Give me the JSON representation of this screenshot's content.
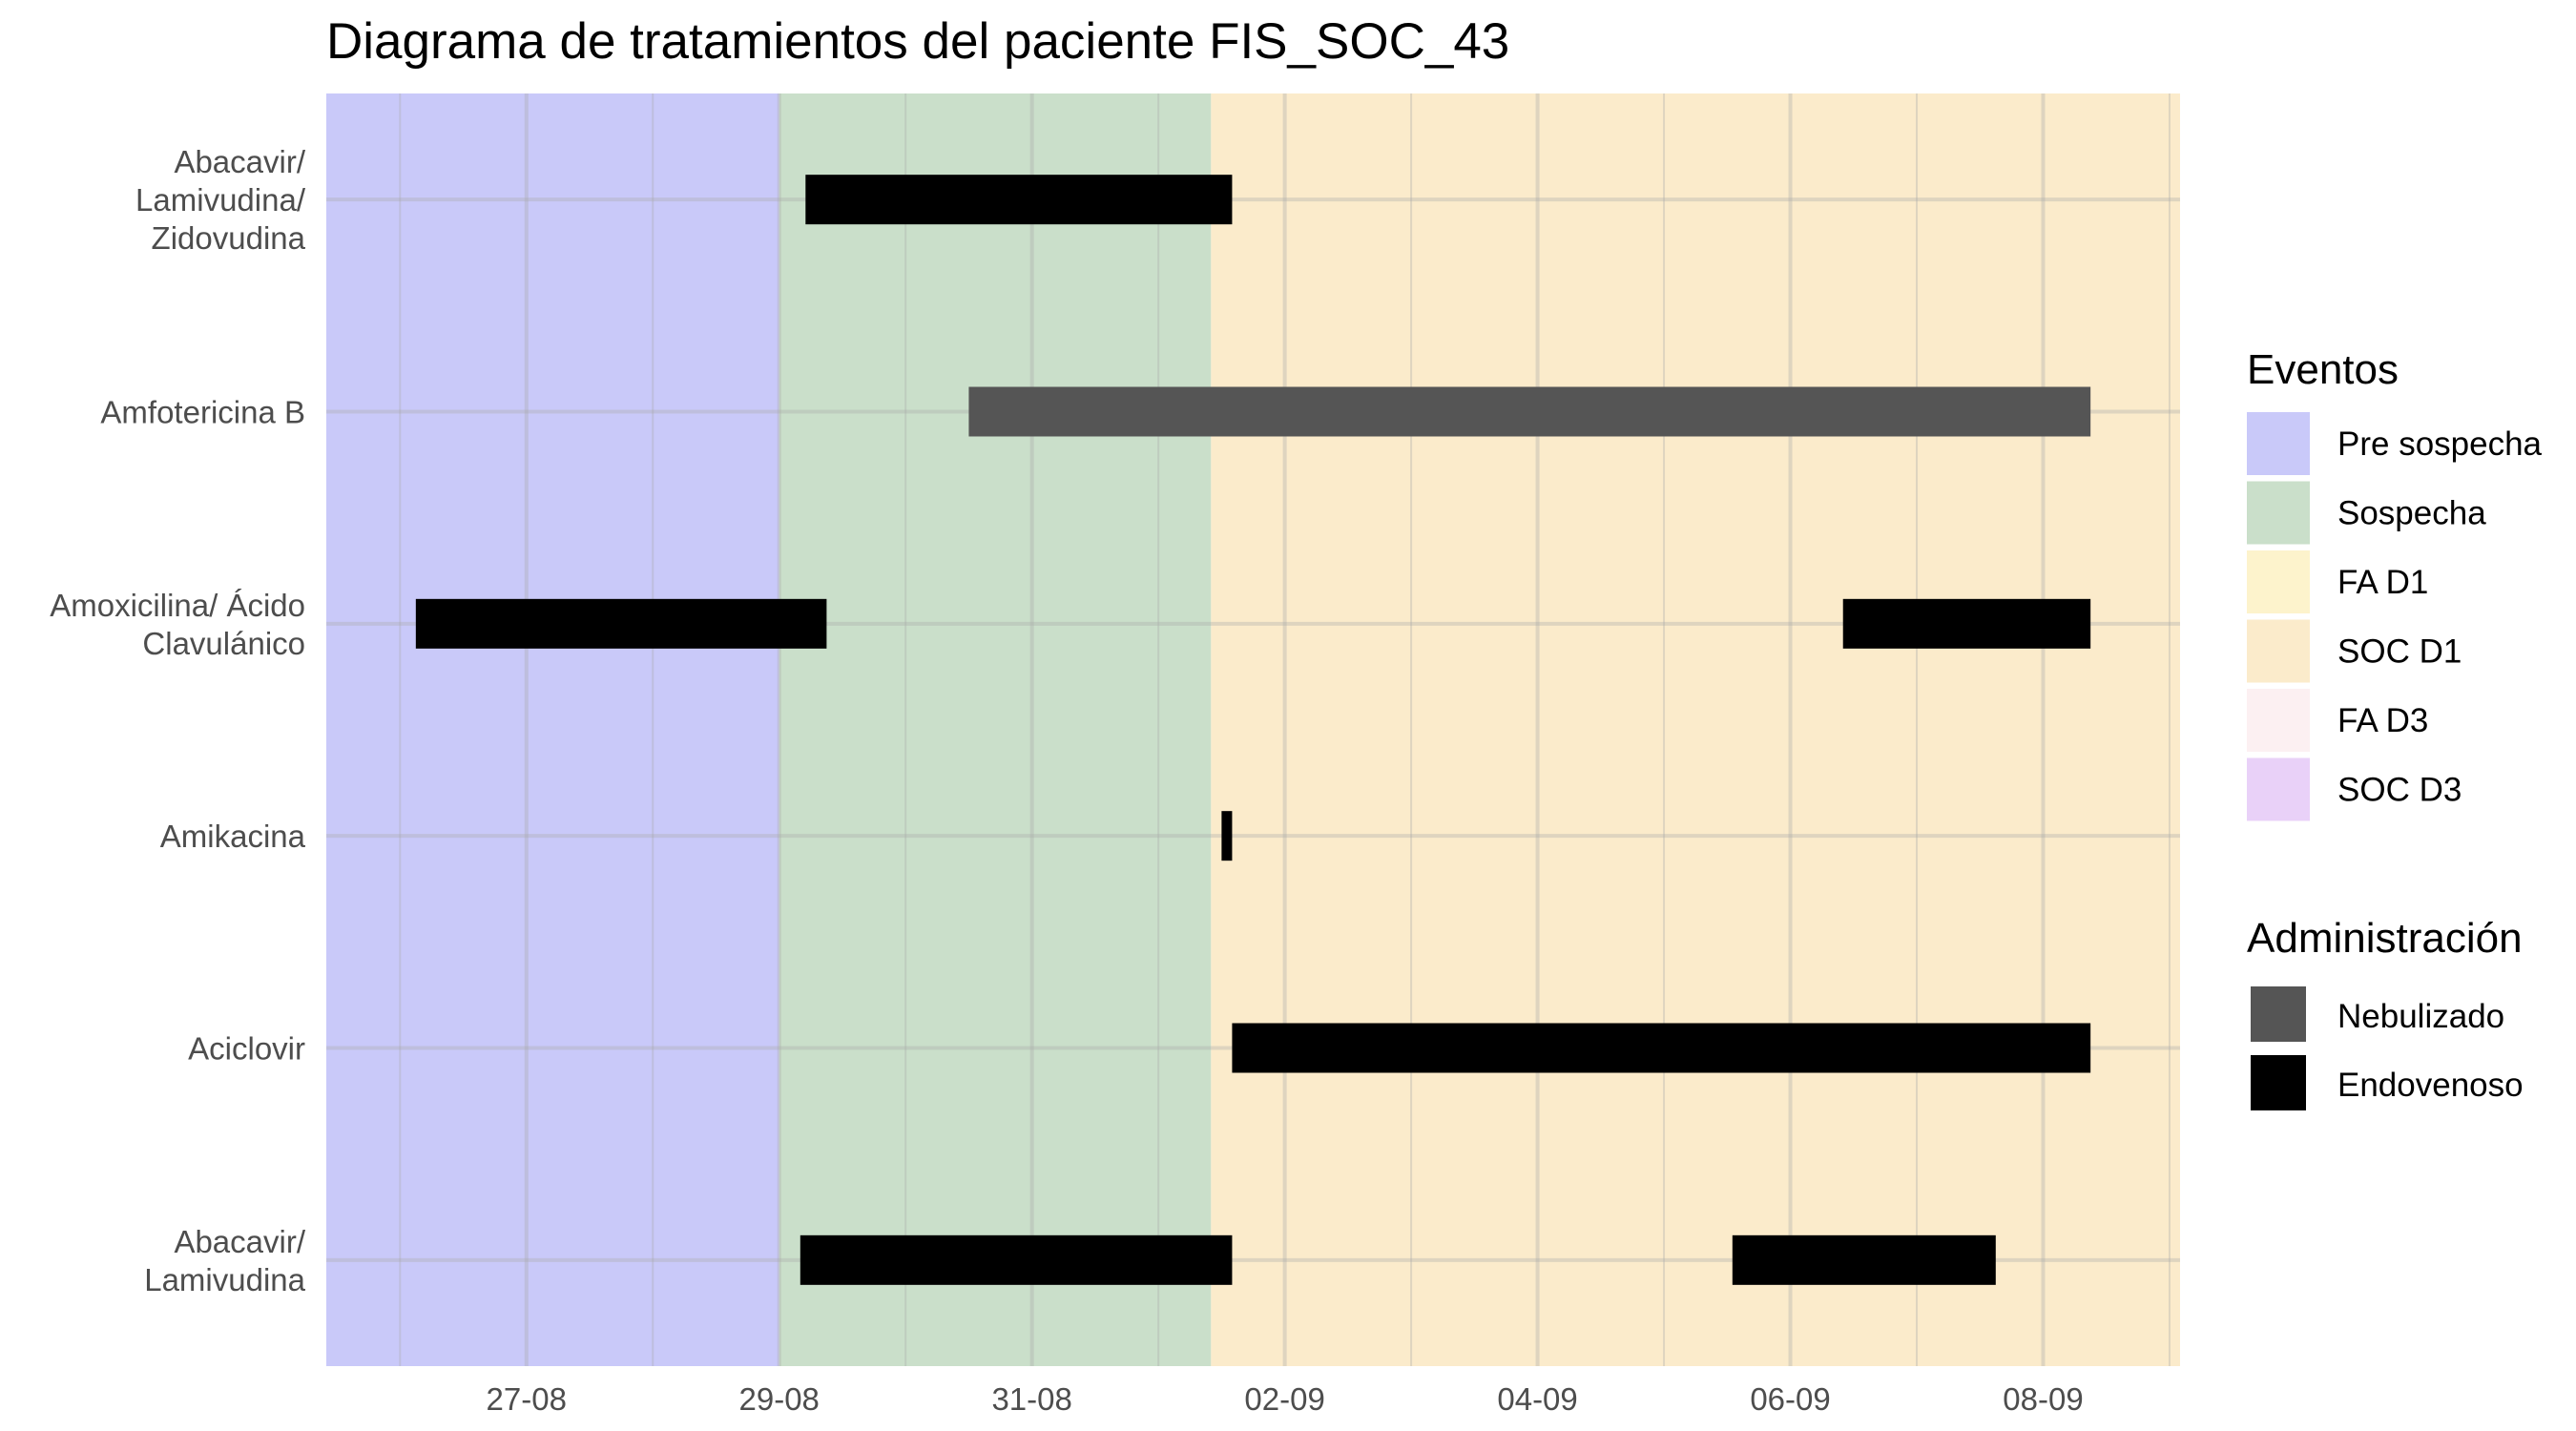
{
  "chart_data": {
    "type": "gantt",
    "title": "Diagrama de tratamientos del paciente FIS_SOC_43",
    "xlabel": "",
    "ylabel": "",
    "x_ticks": [
      "27-08",
      "29-08",
      "31-08",
      "02-09",
      "04-09",
      "06-09",
      "08-09"
    ],
    "x_range": [
      "2024-08-25T10:00",
      "2024-09-09T02:00"
    ],
    "categories": [
      [
        "Abacavir/",
        "Lamivudina/",
        "Zidovudina"
      ],
      [
        "Amfotericina B"
      ],
      [
        "Amoxicilina/ Ácido",
        "Clavulánico"
      ],
      [
        "Amikacina"
      ],
      [
        "Aciclovir"
      ],
      [
        "Abacavir/",
        "Lamivudina"
      ]
    ],
    "event_bands": [
      {
        "event": "Pre sospecha",
        "start": "2024-08-25T10:00",
        "end": "2024-08-29T00:00"
      },
      {
        "event": "Sospecha",
        "start": "2024-08-29T00:00",
        "end": "2024-09-01T10:00"
      },
      {
        "event": "SOC D1",
        "start": "2024-09-01T10:00",
        "end": "2024-09-09T02:00"
      }
    ],
    "bars": [
      {
        "row": 0,
        "start": "2024-08-29T05:00",
        "end": "2024-09-01T14:00",
        "administration": "Endovenoso"
      },
      {
        "row": 1,
        "start": "2024-08-30T12:00",
        "end": "2024-09-08T09:00",
        "administration": "Nebulizado"
      },
      {
        "row": 2,
        "start": "2024-08-26T03:00",
        "end": "2024-08-29T09:00",
        "administration": "Endovenoso"
      },
      {
        "row": 2,
        "start": "2024-09-06T10:00",
        "end": "2024-09-08T09:00",
        "administration": "Endovenoso"
      },
      {
        "row": 3,
        "start": "2024-09-01T12:00",
        "end": "2024-09-01T14:00",
        "administration": "Endovenoso"
      },
      {
        "row": 4,
        "start": "2024-09-01T14:00",
        "end": "2024-09-08T09:00",
        "administration": "Endovenoso"
      },
      {
        "row": 5,
        "start": "2024-08-29T04:00",
        "end": "2024-09-01T14:00",
        "administration": "Endovenoso"
      },
      {
        "row": 5,
        "start": "2024-09-05T13:00",
        "end": "2024-09-07T15:00",
        "administration": "Endovenoso"
      }
    ],
    "legend": {
      "position": "right",
      "events_title": "Eventos",
      "events": [
        {
          "label": "Pre sospecha",
          "color": "#c9c9f9"
        },
        {
          "label": "Sospecha",
          "color": "#cadfca"
        },
        {
          "label": "FA D1",
          "color": "#fdf3cc"
        },
        {
          "label": "SOC D1",
          "color": "#fbebcb"
        },
        {
          "label": "FA D3",
          "color": "#fcf0f2"
        },
        {
          "label": "SOC D3",
          "color": "#e9d1f8"
        }
      ],
      "admin_title": "Administración",
      "administration": [
        {
          "label": "Nebulizado",
          "color": "#555555"
        },
        {
          "label": "Endovenoso",
          "color": "#000000"
        }
      ]
    },
    "grid": true
  }
}
